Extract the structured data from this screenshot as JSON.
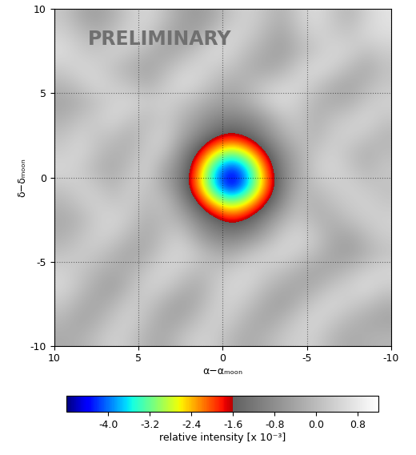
{
  "chart_data": {
    "type": "heatmap",
    "annotations": [
      "PRELIMINARY"
    ],
    "x_label": "α−αₘₒₒₙ",
    "y_label": "δ−δₘₒₒₙ",
    "x": [
      9.5,
      8.5,
      7.5,
      6.5,
      5.5,
      4.5,
      3.5,
      2.5,
      1.5,
      0.5,
      -0.5,
      -1.5,
      -2.5,
      -3.5,
      -4.5,
      -5.5,
      -6.5,
      -7.5,
      -8.5,
      -9.5
    ],
    "y": [
      9.5,
      8.5,
      7.5,
      6.5,
      5.5,
      4.5,
      3.5,
      2.5,
      1.5,
      0.5,
      -0.5,
      -1.5,
      -2.5,
      -3.5,
      -4.5,
      -5.5,
      -6.5,
      -7.5,
      -8.5,
      -9.5
    ],
    "values": [
      [
        0.2,
        -0.3,
        -0.5,
        -0.2,
        0.3,
        0.5,
        0.1,
        -0.4,
        -0.6,
        -0.3,
        0.2,
        0.4,
        0.1,
        -0.2,
        0.3,
        0.6,
        0.2,
        -0.1,
        0.4,
        0.7
      ],
      [
        0.4,
        0.1,
        -0.2,
        0.1,
        0.5,
        0.3,
        -0.2,
        -0.5,
        -0.4,
        0.1,
        0.5,
        0.3,
        -0.1,
        -0.4,
        0.1,
        0.4,
        0.3,
        0.2,
        0.5,
        0.6
      ],
      [
        0.6,
        0.3,
        0.2,
        0.4,
        0.2,
        -0.1,
        -0.4,
        -0.2,
        0.2,
        0.6,
        0.4,
        0.0,
        -0.3,
        -0.5,
        -0.1,
        0.2,
        0.5,
        0.4,
        0.1,
        0.3
      ],
      [
        0.3,
        0.5,
        0.4,
        0.1,
        -0.2,
        -0.4,
        -0.1,
        0.3,
        0.5,
        0.3,
        0.1,
        -0.2,
        -0.4,
        -0.2,
        0.3,
        0.6,
        0.4,
        0.0,
        -0.3,
        0.1
      ],
      [
        -0.1,
        0.2,
        0.5,
        0.3,
        0.1,
        -0.2,
        0.2,
        0.6,
        0.4,
        0.0,
        -0.3,
        -0.1,
        0.2,
        0.4,
        0.5,
        0.2,
        -0.2,
        -0.4,
        -0.1,
        0.2
      ],
      [
        -0.4,
        -0.2,
        0.1,
        0.4,
        0.5,
        0.3,
        0.4,
        0.2,
        -0.1,
        -0.4,
        -0.5,
        -0.2,
        0.3,
        0.6,
        0.3,
        -0.1,
        -0.3,
        -0.2,
        0.2,
        0.4
      ],
      [
        -0.2,
        0.1,
        0.3,
        0.5,
        0.2,
        0.0,
        0.3,
        -0.1,
        -0.5,
        -0.9,
        -1.0,
        -0.9,
        -0.5,
        0.1,
        0.2,
        -0.2,
        0.1,
        0.3,
        0.5,
        0.2
      ],
      [
        0.1,
        0.4,
        0.2,
        0.1,
        -0.2,
        0.2,
        0.4,
        -0.3,
        -0.9,
        -1.4,
        -1.7,
        -1.4,
        -0.9,
        -0.3,
        0.1,
        -0.1,
        0.3,
        0.4,
        0.2,
        -0.1
      ],
      [
        0.3,
        0.5,
        0.1,
        -0.2,
        -0.1,
        0.3,
        0.2,
        -0.8,
        -1.6,
        -2.6,
        -3.1,
        -2.6,
        -1.6,
        -0.8,
        -0.2,
        0.2,
        0.4,
        0.1,
        -0.2,
        0.0
      ],
      [
        0.5,
        0.3,
        -0.1,
        -0.3,
        0.1,
        0.4,
        -0.4,
        -1.0,
        -2.2,
        -3.7,
        -4.5,
        -3.7,
        -2.2,
        -1.0,
        -0.3,
        0.3,
        0.5,
        0.2,
        -0.1,
        0.2
      ],
      [
        0.2,
        0.4,
        0.2,
        -0.1,
        0.3,
        0.2,
        -0.3,
        -1.1,
        -2.3,
        -3.8,
        -4.7,
        -3.8,
        -2.3,
        -1.1,
        -0.2,
        0.1,
        0.3,
        0.4,
        0.2,
        0.1
      ],
      [
        -0.1,
        0.2,
        0.4,
        0.2,
        0.3,
        0.0,
        0.1,
        -0.7,
        -1.6,
        -2.6,
        -3.1,
        -2.6,
        -1.7,
        -0.8,
        0.0,
        -0.2,
        0.1,
        0.3,
        0.4,
        0.2
      ],
      [
        -0.3,
        -0.1,
        0.3,
        0.5,
        0.2,
        -0.2,
        0.0,
        -0.2,
        -0.9,
        -1.4,
        -1.8,
        -1.5,
        -0.9,
        -0.2,
        0.2,
        -0.1,
        -0.2,
        0.1,
        0.3,
        0.4
      ],
      [
        -0.2,
        0.1,
        0.4,
        0.3,
        -0.1,
        -0.3,
        0.1,
        0.3,
        -0.4,
        -0.9,
        -1.0,
        -0.8,
        -0.3,
        0.3,
        0.5,
        0.2,
        -0.3,
        -0.4,
        0.0,
        0.3
      ],
      [
        0.1,
        0.3,
        0.2,
        -0.1,
        -0.4,
        -0.2,
        0.3,
        0.5,
        0.2,
        -0.2,
        -0.3,
        0.1,
        0.4,
        0.5,
        0.3,
        0.0,
        -0.4,
        -0.5,
        -0.2,
        0.1
      ],
      [
        0.4,
        0.2,
        -0.1,
        -0.3,
        -0.2,
        0.2,
        0.5,
        0.3,
        0.0,
        0.1,
        0.3,
        0.5,
        0.3,
        0.1,
        -0.2,
        -0.4,
        -0.3,
        0.0,
        0.3,
        0.5
      ],
      [
        0.5,
        0.1,
        -0.3,
        -0.5,
        0.0,
        0.4,
        0.3,
        -0.1,
        -0.3,
        0.2,
        0.5,
        0.4,
        0.0,
        -0.3,
        -0.4,
        -0.2,
        0.2,
        0.4,
        0.6,
        0.3
      ],
      [
        0.2,
        -0.2,
        -0.4,
        -0.1,
        0.3,
        0.2,
        -0.2,
        -0.5,
        -0.2,
        0.3,
        0.4,
        0.1,
        -0.3,
        -0.5,
        -0.1,
        0.3,
        0.5,
        0.3,
        0.1,
        -0.2
      ],
      [
        -0.1,
        -0.4,
        -0.2,
        0.2,
        0.4,
        0.0,
        -0.4,
        -0.3,
        0.1,
        0.4,
        0.2,
        -0.2,
        -0.4,
        -0.1,
        0.3,
        0.5,
        0.2,
        -0.1,
        -0.3,
        -0.4
      ],
      [
        -0.3,
        -0.2,
        0.1,
        0.4,
        0.2,
        -0.2,
        -0.3,
        0.1,
        0.4,
        0.3,
        -0.1,
        -0.3,
        -0.1,
        0.2,
        0.4,
        0.3,
        -0.1,
        -0.3,
        -0.2,
        -0.1
      ]
    ],
    "xlim": [
      10,
      -10
    ],
    "ylim": [
      -10,
      10
    ],
    "xticks": [
      10,
      5,
      0,
      -5,
      -10
    ],
    "yticks": [
      -10,
      -5,
      0,
      5,
      10
    ],
    "grid": true,
    "colorbar": {
      "label": "relative intensity [x 10⁻³]",
      "range": [
        -4.8,
        1.2
      ],
      "ticks": [
        -4.0,
        -3.2,
        -2.4,
        -1.6,
        -0.8,
        0.0,
        0.8
      ],
      "threshold": -1.6
    }
  }
}
